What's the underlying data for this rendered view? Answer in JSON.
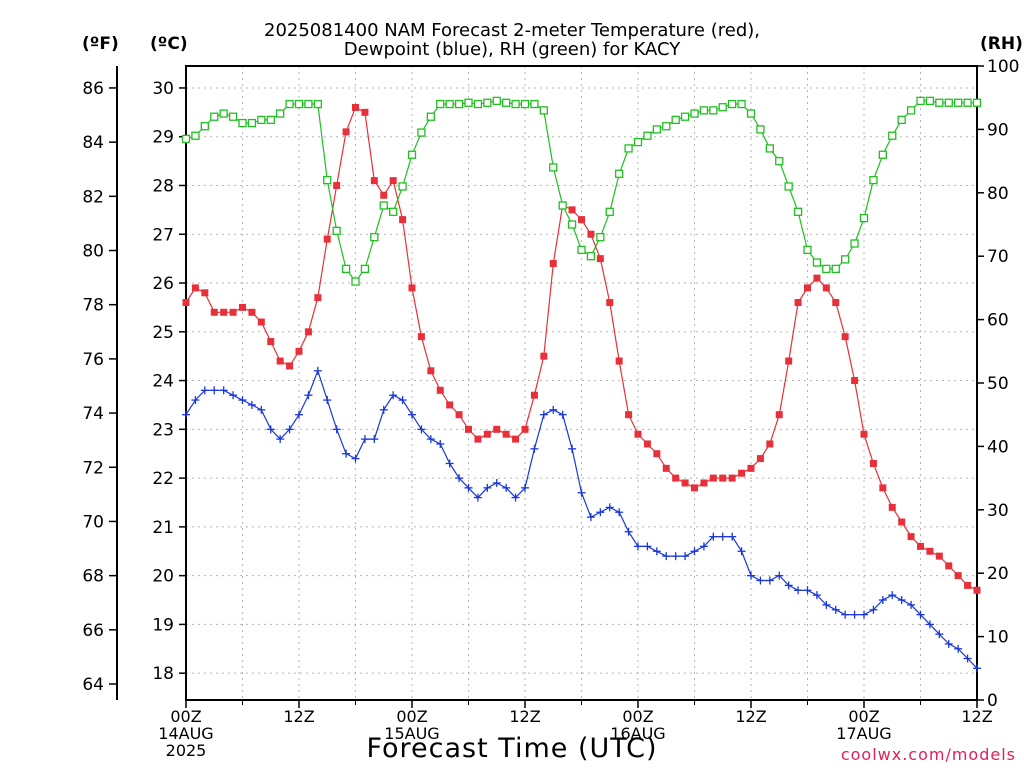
{
  "title_line1": "2025081400 NAM Forecast 2-meter Temperature (red),",
  "title_line2": "Dewpoint (blue), RH (green) for KACY",
  "unit_f": "(ºF)",
  "unit_c": "(ºC)",
  "unit_rh": "(RH)",
  "xlabel": "Forecast Time (UTC)",
  "credit": "coolwx.com/models",
  "chart_data": {
    "type": "line",
    "x_unit": "hours since 00Z 14AUG 2025",
    "x_range": [
      0,
      84
    ],
    "x_ticks": [
      {
        "hour": 0,
        "lines": [
          "00Z",
          "14AUG",
          "2025"
        ]
      },
      {
        "hour": 12,
        "lines": [
          "12Z"
        ]
      },
      {
        "hour": 24,
        "lines": [
          "00Z",
          "15AUG"
        ]
      },
      {
        "hour": 36,
        "lines": [
          "12Z"
        ]
      },
      {
        "hour": 48,
        "lines": [
          "00Z",
          "16AUG"
        ]
      },
      {
        "hour": 60,
        "lines": [
          "12Z"
        ]
      },
      {
        "hour": 72,
        "lines": [
          "00Z",
          "17AUG"
        ]
      },
      {
        "hour": 84,
        "lines": [
          "12Z"
        ]
      }
    ],
    "axes": {
      "celsius": {
        "range": [
          17.45,
          30.45
        ],
        "ticks": [
          18,
          19,
          20,
          21,
          22,
          23,
          24,
          25,
          26,
          27,
          28,
          29,
          30
        ]
      },
      "fahrenheit": {
        "ticks": [
          64,
          66,
          68,
          70,
          72,
          74,
          76,
          78,
          80,
          82,
          84,
          86
        ]
      },
      "rh": {
        "range": [
          0,
          100
        ],
        "ticks": [
          0,
          10,
          20,
          30,
          40,
          50,
          60,
          70,
          80,
          90,
          100
        ]
      }
    },
    "grid": true,
    "series": [
      {
        "name": "Temperature",
        "color": "#e8303a",
        "axis": "celsius",
        "marker": "filled-square",
        "x": [
          0,
          1,
          2,
          3,
          4,
          5,
          6,
          7,
          8,
          9,
          10,
          11,
          12,
          13,
          14,
          15,
          16,
          17,
          18,
          19,
          20,
          21,
          22,
          23,
          24,
          25,
          26,
          27,
          28,
          29,
          30,
          31,
          32,
          33,
          34,
          35,
          36,
          37,
          38,
          39,
          40,
          41,
          42,
          43,
          44,
          45,
          46,
          47,
          48,
          49,
          50,
          51,
          52,
          53,
          54,
          55,
          56,
          57,
          58,
          59,
          60,
          61,
          62,
          63,
          64,
          65,
          66,
          67,
          68,
          69,
          70,
          71,
          72,
          73,
          74,
          75,
          76,
          77,
          78,
          79,
          80,
          81,
          82,
          83,
          84
        ],
        "y": [
          25.6,
          25.9,
          25.8,
          25.4,
          25.4,
          25.4,
          25.5,
          25.4,
          25.2,
          24.8,
          24.4,
          24.3,
          24.6,
          25.0,
          25.7,
          26.9,
          28.0,
          29.1,
          29.6,
          29.5,
          28.1,
          27.8,
          28.1,
          27.3,
          25.9,
          24.9,
          24.2,
          23.8,
          23.5,
          23.3,
          23.0,
          22.8,
          22.9,
          23.0,
          22.9,
          22.8,
          23.0,
          23.7,
          24.5,
          26.4,
          27.6,
          27.5,
          27.3,
          27.0,
          26.5,
          25.6,
          24.4,
          23.3,
          22.9,
          22.7,
          22.5,
          22.2,
          22.0,
          21.9,
          21.8,
          21.9,
          22.0,
          22.0,
          22.0,
          22.1,
          22.2,
          22.4,
          22.7,
          23.3,
          24.4,
          25.6,
          25.9,
          26.1,
          25.9,
          25.6,
          24.9,
          24.0,
          22.9,
          22.3,
          21.8,
          21.4,
          21.1,
          20.8,
          20.6,
          20.5,
          20.4,
          20.2,
          20.0,
          19.8,
          19.7
        ]
      },
      {
        "name": "Dewpoint",
        "color": "#1a38d8",
        "axis": "celsius",
        "marker": "plus",
        "x": [
          0,
          1,
          2,
          3,
          4,
          5,
          6,
          7,
          8,
          9,
          10,
          11,
          12,
          13,
          14,
          15,
          16,
          17,
          18,
          19,
          20,
          21,
          22,
          23,
          24,
          25,
          26,
          27,
          28,
          29,
          30,
          31,
          32,
          33,
          34,
          35,
          36,
          37,
          38,
          39,
          40,
          41,
          42,
          43,
          44,
          45,
          46,
          47,
          48,
          49,
          50,
          51,
          52,
          53,
          54,
          55,
          56,
          57,
          58,
          59,
          60,
          61,
          62,
          63,
          64,
          65,
          66,
          67,
          68,
          69,
          70,
          71,
          72,
          73,
          74,
          75,
          76,
          77,
          78,
          79,
          80,
          81,
          82,
          83,
          84
        ],
        "y": [
          23.3,
          23.6,
          23.8,
          23.8,
          23.8,
          23.7,
          23.6,
          23.5,
          23.4,
          23.0,
          22.8,
          23.0,
          23.3,
          23.7,
          24.2,
          23.6,
          23.0,
          22.5,
          22.4,
          22.8,
          22.8,
          23.4,
          23.7,
          23.6,
          23.3,
          23.0,
          22.8,
          22.7,
          22.3,
          22.0,
          21.8,
          21.6,
          21.8,
          21.9,
          21.8,
          21.6,
          21.8,
          22.6,
          23.3,
          23.4,
          23.3,
          22.6,
          21.7,
          21.2,
          21.3,
          21.4,
          21.3,
          20.9,
          20.6,
          20.6,
          20.5,
          20.4,
          20.4,
          20.4,
          20.5,
          20.6,
          20.8,
          20.8,
          20.8,
          20.5,
          20.0,
          19.9,
          19.9,
          20.0,
          19.8,
          19.7,
          19.7,
          19.6,
          19.4,
          19.3,
          19.2,
          19.2,
          19.2,
          19.3,
          19.5,
          19.6,
          19.5,
          19.4,
          19.2,
          19.0,
          18.8,
          18.6,
          18.5,
          18.3,
          18.1
        ]
      },
      {
        "name": "RH",
        "color": "#20c020",
        "axis": "rh",
        "marker": "open-square",
        "x": [
          0,
          1,
          2,
          3,
          4,
          5,
          6,
          7,
          8,
          9,
          10,
          11,
          12,
          13,
          14,
          15,
          16,
          17,
          18,
          19,
          20,
          21,
          22,
          23,
          24,
          25,
          26,
          27,
          28,
          29,
          30,
          31,
          32,
          33,
          34,
          35,
          36,
          37,
          38,
          39,
          40,
          41,
          42,
          43,
          44,
          45,
          46,
          47,
          48,
          49,
          50,
          51,
          52,
          53,
          54,
          55,
          56,
          57,
          58,
          59,
          60,
          61,
          62,
          63,
          64,
          65,
          66,
          67,
          68,
          69,
          70,
          71,
          72,
          73,
          74,
          75,
          76,
          77,
          78,
          79,
          80,
          81,
          82,
          83,
          84
        ],
        "y": [
          88.5,
          89,
          90.5,
          92,
          92.5,
          92,
          91,
          91,
          91.5,
          91.5,
          92.5,
          94,
          94,
          94,
          94,
          82,
          74,
          68,
          66,
          68,
          73,
          78,
          77,
          81,
          86,
          89.5,
          92,
          94,
          94,
          94,
          94.2,
          94,
          94.2,
          94.5,
          94.2,
          94,
          94,
          94,
          93,
          84,
          78,
          75,
          71,
          70,
          73,
          77,
          83,
          87,
          88,
          89,
          90,
          90.5,
          91.5,
          92,
          92.5,
          93,
          93,
          93.5,
          94,
          94,
          92.5,
          90,
          87,
          85,
          81,
          77,
          71,
          69,
          68,
          68,
          69.5,
          72,
          76,
          82,
          86,
          89,
          91.5,
          93,
          94.5,
          94.5,
          94.2,
          94.2,
          94.2,
          94.2,
          94.2
        ]
      }
    ]
  }
}
